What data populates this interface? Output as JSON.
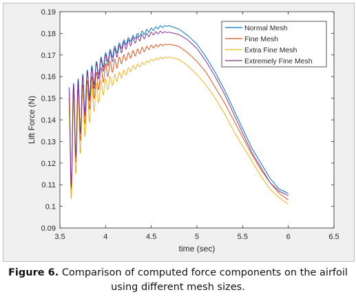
{
  "chart_data": {
    "type": "line",
    "title": "",
    "xlabel": "time (sec)",
    "ylabel": "Lift Force (N)",
    "xlim": [
      3.5,
      6.5
    ],
    "ylim": [
      0.09,
      0.19
    ],
    "x_ticks": [
      "3.5",
      "4",
      "4.5",
      "5",
      "5.5",
      "6",
      "6.5"
    ],
    "y_ticks": [
      "0.09",
      "0.1",
      "0.11",
      "0.12",
      "0.13",
      "0.14",
      "0.15",
      "0.16",
      "0.17",
      "0.18",
      "0.19"
    ],
    "grid": false,
    "legend_position": "top-right",
    "x": [
      3.6,
      3.65,
      3.7,
      3.75,
      3.8,
      3.85,
      3.9,
      3.95,
      4.0,
      4.1,
      4.2,
      4.3,
      4.4,
      4.5,
      4.6,
      4.7,
      4.8,
      4.9,
      5.0,
      5.1,
      5.2,
      5.3,
      5.4,
      5.5,
      5.6,
      5.7,
      5.8,
      5.9,
      6.0
    ],
    "series": [
      {
        "name": "Normal Mesh",
        "color": "#0072bd",
        "upper": [
          0.155,
          0.157,
          0.159,
          0.161,
          0.163,
          0.165,
          0.167,
          0.169,
          0.171,
          0.174,
          0.177,
          0.179,
          0.181,
          0.1825,
          0.1835,
          0.1835,
          0.182,
          0.179,
          0.175,
          0.169,
          0.162,
          0.154,
          0.145,
          0.136,
          0.127,
          0.12,
          0.113,
          0.108,
          0.106
        ],
        "lower": [
          0.102,
          0.118,
          0.13,
          0.14,
          0.148,
          0.154,
          0.159,
          0.163,
          0.166,
          0.17,
          0.174,
          0.177,
          0.179,
          0.181,
          0.1825,
          0.1835,
          0.182,
          0.179,
          0.175,
          0.169,
          0.162,
          0.154,
          0.145,
          0.136,
          0.127,
          0.12,
          0.113,
          0.108,
          0.106
        ]
      },
      {
        "name": "Fine Mesh",
        "color": "#d95319",
        "upper": [
          0.15,
          0.152,
          0.154,
          0.156,
          0.158,
          0.16,
          0.162,
          0.164,
          0.166,
          0.168,
          0.17,
          0.172,
          0.1735,
          0.1745,
          0.175,
          0.175,
          0.174,
          0.171,
          0.167,
          0.162,
          0.155,
          0.148,
          0.14,
          0.132,
          0.124,
          0.117,
          0.111,
          0.106,
          0.103
        ],
        "lower": [
          0.1,
          0.115,
          0.126,
          0.135,
          0.142,
          0.148,
          0.152,
          0.156,
          0.159,
          0.163,
          0.167,
          0.169,
          0.171,
          0.173,
          0.174,
          0.175,
          0.174,
          0.171,
          0.167,
          0.162,
          0.155,
          0.148,
          0.14,
          0.132,
          0.124,
          0.117,
          0.111,
          0.106,
          0.103
        ]
      },
      {
        "name": "Extra Fine Mesh",
        "color": "#edb120",
        "upper": [
          0.146,
          0.148,
          0.15,
          0.152,
          0.154,
          0.156,
          0.157,
          0.158,
          0.159,
          0.161,
          0.163,
          0.165,
          0.1665,
          0.168,
          0.169,
          0.169,
          0.168,
          0.165,
          0.161,
          0.156,
          0.15,
          0.143,
          0.135,
          0.128,
          0.121,
          0.114,
          0.108,
          0.104,
          0.101
        ],
        "lower": [
          0.097,
          0.11,
          0.12,
          0.129,
          0.136,
          0.142,
          0.146,
          0.15,
          0.153,
          0.157,
          0.16,
          0.163,
          0.165,
          0.167,
          0.168,
          0.169,
          0.168,
          0.165,
          0.161,
          0.156,
          0.15,
          0.143,
          0.135,
          0.128,
          0.121,
          0.114,
          0.108,
          0.104,
          0.101
        ]
      },
      {
        "name": "Extremely Fine Mesh",
        "color": "#7e2f8e",
        "upper": [
          0.154,
          0.156,
          0.158,
          0.16,
          0.162,
          0.164,
          0.166,
          0.168,
          0.17,
          0.173,
          0.176,
          0.178,
          0.1795,
          0.1805,
          0.181,
          0.1805,
          0.1795,
          0.177,
          0.173,
          0.167,
          0.16,
          0.152,
          0.143,
          0.134,
          0.125,
          0.118,
          0.111,
          0.107,
          0.105
        ],
        "lower": [
          0.101,
          0.117,
          0.129,
          0.138,
          0.146,
          0.152,
          0.157,
          0.161,
          0.164,
          0.168,
          0.172,
          0.175,
          0.177,
          0.179,
          0.18,
          0.1805,
          0.1795,
          0.177,
          0.173,
          0.167,
          0.16,
          0.152,
          0.143,
          0.134,
          0.125,
          0.118,
          0.111,
          0.107,
          0.105
        ]
      }
    ]
  },
  "caption": {
    "label": "Figure 6.",
    "text": " Comparison of computed force components on the airfoil using different mesh sizes."
  }
}
